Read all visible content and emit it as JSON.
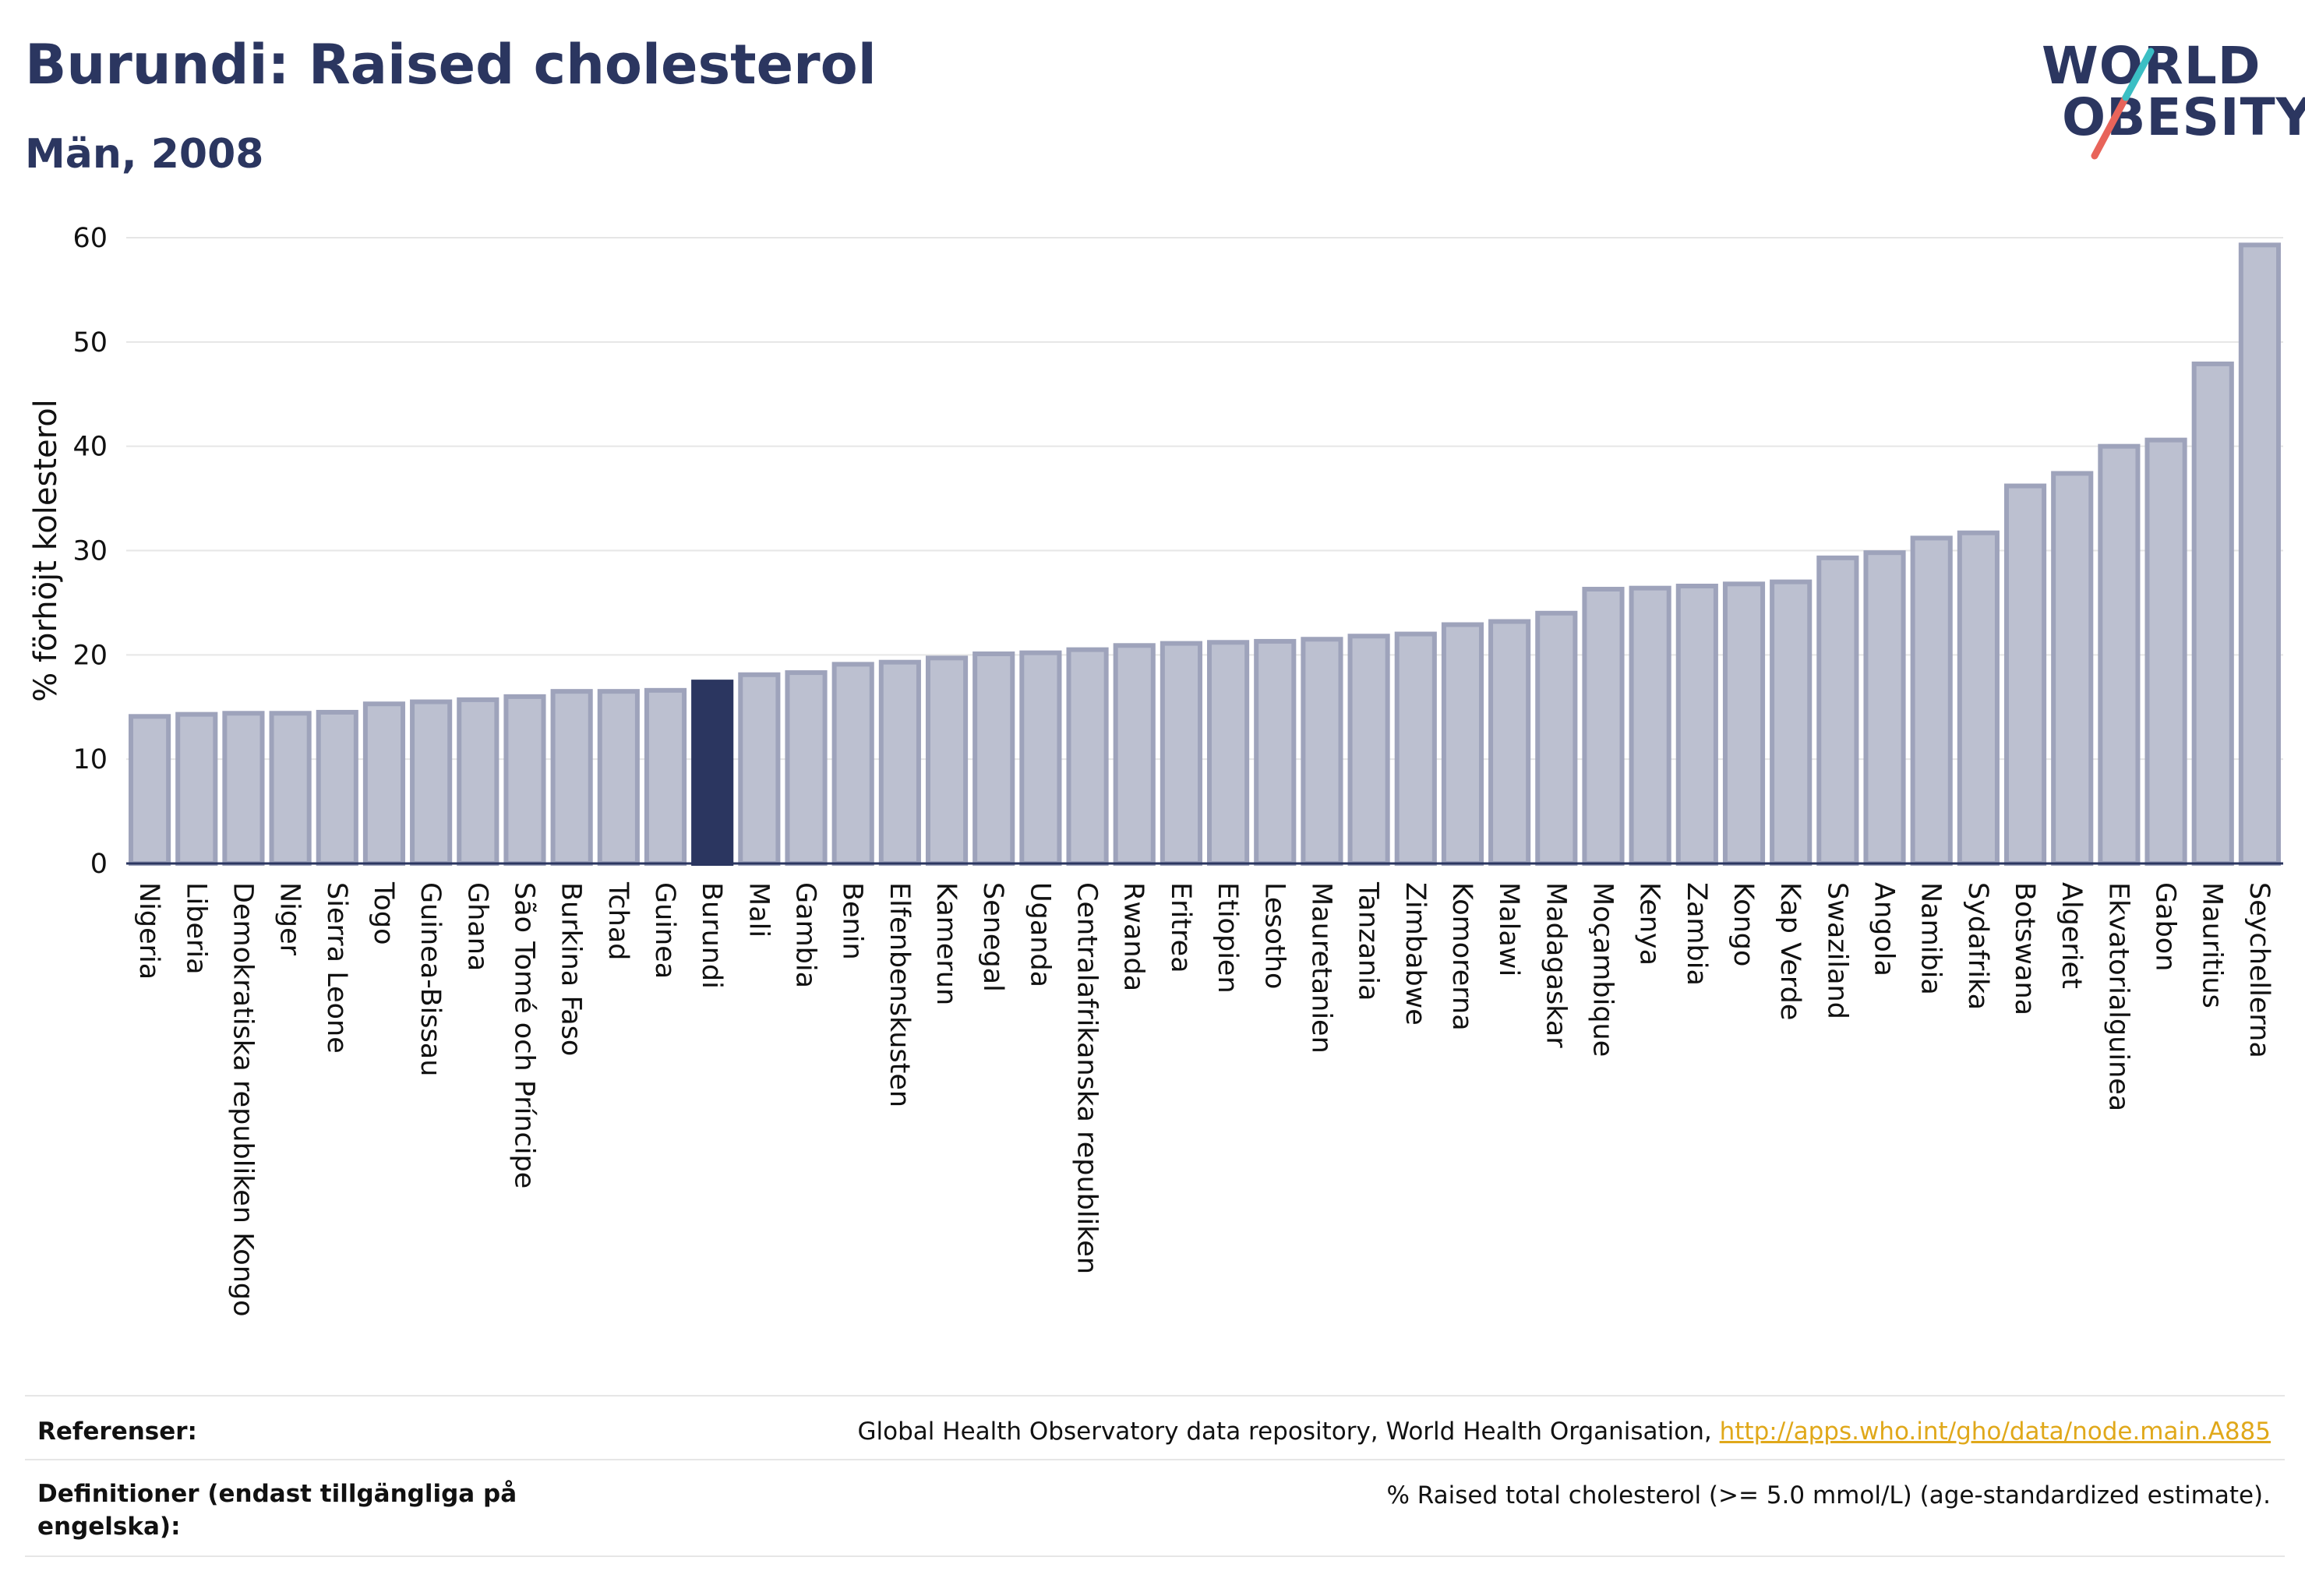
{
  "title": "Burundi: Raised cholesterol",
  "subtitle": "Män, 2008",
  "logo": {
    "line1": "WORLD",
    "line2": "OBESITY"
  },
  "colors": {
    "highlight": "#2b3660",
    "bar_fill": "#bcc0d0",
    "bar_stroke": "#9ea3bb",
    "logo_slash_teal": "#3bbfc4",
    "logo_slash_red": "#e8645a",
    "link": "#e0a81a"
  },
  "chart_data": {
    "type": "bar",
    "ylabel": "% förhöjt kolesterol",
    "xlabel": "",
    "ylim": [
      0,
      60
    ],
    "yticks": [
      0,
      10,
      20,
      30,
      40,
      50,
      60
    ],
    "grid": true,
    "highlight": "Burundi",
    "categories": [
      "Nigeria",
      "Liberia",
      "Demokratiska republiken Kongo",
      "Niger",
      "Sierra Leone",
      "Togo",
      "Guinea-Bissau",
      "Ghana",
      "São Tomé och Príncipe",
      "Burkina Faso",
      "Tchad",
      "Guinea",
      "Burundi",
      "Mali",
      "Gambia",
      "Benin",
      "Elfenbenskusten",
      "Kamerun",
      "Senegal",
      "Uganda",
      "Centralafrikanska republiken",
      "Rwanda",
      "Eritrea",
      "Etiopien",
      "Lesotho",
      "Mauretanien",
      "Tanzania",
      "Zimbabwe",
      "Komorerna",
      "Malawi",
      "Madagaskar",
      "Moçambique",
      "Kenya",
      "Zambia",
      "Kongo",
      "Kap Verde",
      "Swaziland",
      "Angola",
      "Namibia",
      "Sydafrika",
      "Botswana",
      "Algeriet",
      "Ekvatorialguinea",
      "Gabon",
      "Mauritius",
      "Seychellerna"
    ],
    "values": [
      14.1,
      14.3,
      14.4,
      14.4,
      14.5,
      15.3,
      15.5,
      15.7,
      16.0,
      16.5,
      16.5,
      16.6,
      17.4,
      18.1,
      18.3,
      19.1,
      19.3,
      19.7,
      20.1,
      20.2,
      20.5,
      20.9,
      21.1,
      21.2,
      21.3,
      21.5,
      21.8,
      22.0,
      22.9,
      23.2,
      24.0,
      26.3,
      26.4,
      26.6,
      26.8,
      27.0,
      29.3,
      29.8,
      31.2,
      31.7,
      36.2,
      37.4,
      40.0,
      40.6,
      47.9,
      59.3
    ]
  },
  "footer": {
    "references_label": "Referenser:",
    "references_text": "Global Health Observatory data repository, World Health Organisation, ",
    "references_link": "http://apps.who.int/gho/data/node.main.A885",
    "definitions_label": "Definitioner (endast tillgängliga på engelska):",
    "definitions_text": "% Raised total cholesterol (>= 5.0 mmol/L) (age-standardized estimate)."
  }
}
